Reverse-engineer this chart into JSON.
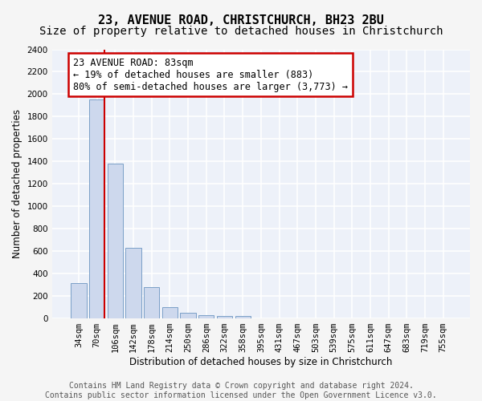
{
  "title": "23, AVENUE ROAD, CHRISTCHURCH, BH23 2BU",
  "subtitle": "Size of property relative to detached houses in Christchurch",
  "xlabel": "Distribution of detached houses by size in Christchurch",
  "ylabel": "Number of detached properties",
  "categories": [
    "34sqm",
    "70sqm",
    "106sqm",
    "142sqm",
    "178sqm",
    "214sqm",
    "250sqm",
    "286sqm",
    "322sqm",
    "358sqm",
    "395sqm",
    "431sqm",
    "467sqm",
    "503sqm",
    "539sqm",
    "575sqm",
    "611sqm",
    "647sqm",
    "683sqm",
    "719sqm",
    "755sqm"
  ],
  "values": [
    315,
    1950,
    1380,
    625,
    275,
    95,
    45,
    28,
    20,
    15,
    0,
    0,
    0,
    0,
    0,
    0,
    0,
    0,
    0,
    0,
    0
  ],
  "bar_color": "#cdd8ed",
  "bar_edge_color": "#7a9fc7",
  "annotation_text": "23 AVENUE ROAD: 83sqm\n← 19% of detached houses are smaller (883)\n80% of semi-detached houses are larger (3,773) →",
  "annotation_box_color": "#ffffff",
  "annotation_box_edge_color": "#cc0000",
  "red_line_color": "#cc0000",
  "ylim": [
    0,
    2400
  ],
  "yticks": [
    0,
    200,
    400,
    600,
    800,
    1000,
    1200,
    1400,
    1600,
    1800,
    2000,
    2200,
    2400
  ],
  "footer_line1": "Contains HM Land Registry data © Crown copyright and database right 2024.",
  "footer_line2": "Contains public sector information licensed under the Open Government Licence v3.0.",
  "fig_bg_color": "#f5f5f5",
  "plot_bg_color": "#edf1f9",
  "grid_color": "#ffffff",
  "title_fontsize": 11,
  "subtitle_fontsize": 10,
  "axis_label_fontsize": 8.5,
  "tick_fontsize": 7.5,
  "annotation_fontsize": 8.5,
  "footer_fontsize": 7
}
